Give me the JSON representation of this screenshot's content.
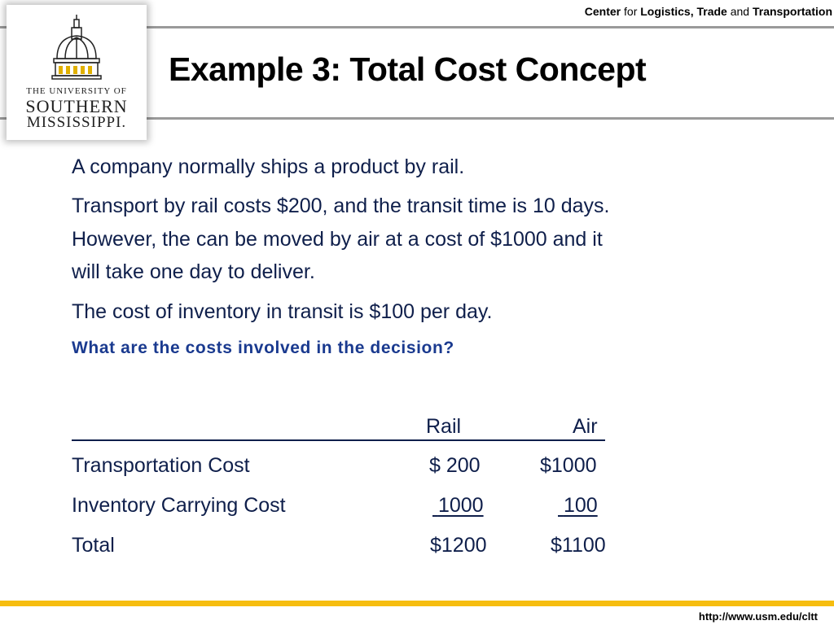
{
  "header": {
    "center_parts": [
      {
        "text": "Center",
        "bold": true
      },
      {
        "text": " for ",
        "bold": false
      },
      {
        "text": "Logistics, Trade",
        "bold": true
      },
      {
        "text": " and ",
        "bold": false
      },
      {
        "text": "Transportation",
        "bold": true
      }
    ],
    "logo": {
      "line1": "THE UNIVERSITY OF",
      "line2": "SOUTHERN",
      "line3": "MISSISSIPPI."
    }
  },
  "slide": {
    "title": "Example 3: Total Cost Concept",
    "paragraphs": [
      "A company normally ships a product by rail.",
      "Transport by rail costs $200, and the transit time is 10 days.",
      "However, the can be moved by air at a cost of $1000 and it",
      "will take one day to deliver.",
      "The cost of inventory in transit is $100 per day."
    ],
    "question": "What are the costs involved in the decision?",
    "table": {
      "columns": [
        "Rail",
        "Air"
      ],
      "rows": [
        {
          "label": "Transportation Cost",
          "rail": "$ 200",
          "air": "$1000"
        },
        {
          "label": "Inventory Carrying Cost",
          "rail": "1000",
          "air": "100"
        },
        {
          "label": "Total",
          "rail": "$1200",
          "air": "$1100"
        }
      ]
    }
  },
  "footer": {
    "url": "http://www.usm.edu/cltt"
  },
  "colors": {
    "text": "#0f1f4b",
    "question": "#1a3a8f",
    "accent_bar": "#f6bd0f",
    "rules": "#9a9a9a"
  }
}
